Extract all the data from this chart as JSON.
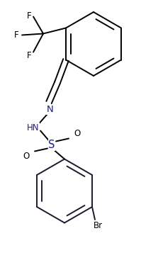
{
  "background": "#ffffff",
  "line_color": "#000000",
  "dark_line": "#1a1a2e",
  "atom_colors": {
    "F": "#000000",
    "N": "#1a1a8c",
    "S": "#1a1a8c",
    "O": "#000000",
    "Br": "#000000",
    "C": "#000000"
  },
  "lw": 1.4,
  "fs": 8.5,
  "dbl_off": 0.018
}
